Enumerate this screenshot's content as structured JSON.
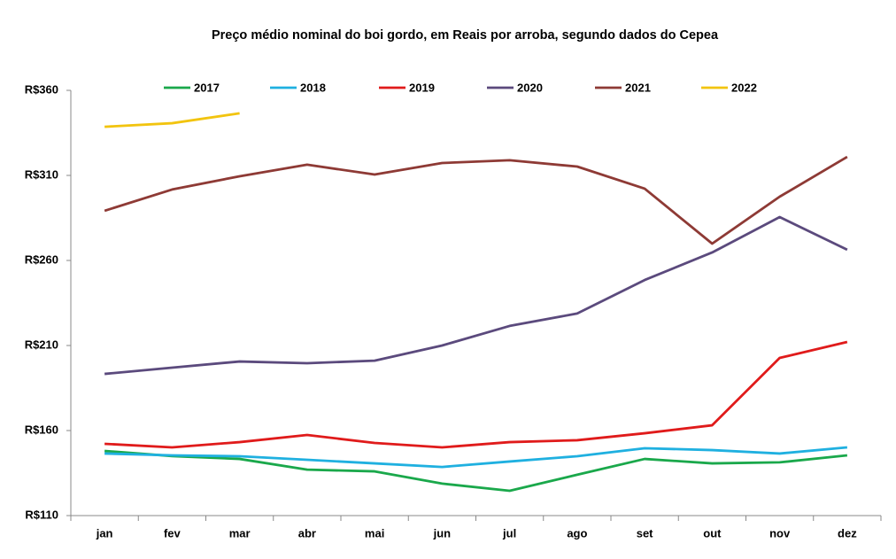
{
  "chart_data": {
    "type": "line",
    "title": "Preço médio nominal do boi gordo, em Reais por arroba, segundo dados do Cepea",
    "categories": [
      "jan",
      "fev",
      "mar",
      "abr",
      "mai",
      "jun",
      "jul",
      "ago",
      "set",
      "out",
      "nov",
      "dez"
    ],
    "series": [
      {
        "name": "2017",
        "color": "#1aa84b",
        "values": [
          148,
          145,
          143.3,
          137,
          136,
          128.8,
          124.6,
          134,
          143.3,
          140.7,
          141.3,
          145.4
        ]
      },
      {
        "name": "2018",
        "color": "#1fb0e0",
        "values": [
          146.5,
          145.4,
          144.9,
          142.8,
          140.7,
          138.6,
          141.8,
          144.9,
          149.6,
          148.5,
          146.5,
          150.1
        ]
      },
      {
        "name": "2019",
        "color": "#e01b1b",
        "values": [
          152.2,
          150.1,
          153.2,
          157.4,
          152.7,
          150.1,
          153.2,
          154.3,
          158.4,
          163.1,
          202.7,
          212.1
        ]
      },
      {
        "name": "2020",
        "color": "#5b4a7d",
        "values": [
          193.3,
          197,
          200.6,
          199.6,
          201.1,
          210,
          221.5,
          228.8,
          248.5,
          264.7,
          285.5,
          266.3
        ]
      },
      {
        "name": "2021",
        "color": "#8e3a35",
        "values": [
          289.2,
          301.7,
          309.5,
          316.3,
          310.5,
          317.3,
          318.9,
          315.2,
          302.2,
          269.9,
          297.5,
          320.9
        ]
      },
      {
        "name": "2022",
        "color": "#f2c40f",
        "values": [
          338.6,
          340.7,
          346.5,
          null,
          null,
          null,
          null,
          null,
          null,
          null,
          null,
          null
        ]
      }
    ],
    "ylim": [
      110,
      360
    ],
    "yticks": [
      {
        "value": 110,
        "label": "R$110"
      },
      {
        "value": 160,
        "label": "R$160"
      },
      {
        "value": 210,
        "label": "R$210"
      },
      {
        "value": 260,
        "label": "R$260"
      },
      {
        "value": 310,
        "label": "R$310"
      },
      {
        "value": 360,
        "label": "R$360"
      }
    ],
    "legend": "top"
  }
}
